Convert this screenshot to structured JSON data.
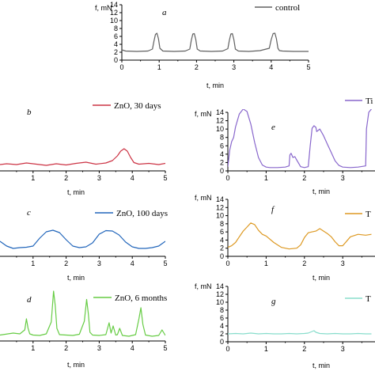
{
  "chart_data": [
    {
      "panel_letter": "a",
      "type": "line",
      "xlabel": "t, min",
      "ylabel": "f, mN",
      "xticks": [
        "0",
        "1",
        "2",
        "3",
        "4",
        "5"
      ],
      "yticks": [
        "0",
        "2",
        "4",
        "6",
        "8",
        "10",
        "12",
        "14"
      ],
      "xlim": [
        0,
        5
      ],
      "ylim": [
        0,
        14
      ],
      "series": [
        {
          "name": "control",
          "color": "#606060",
          "x": [
            0.0,
            0.1,
            0.4,
            0.7,
            0.82,
            0.86,
            0.9,
            0.94,
            0.98,
            1.02,
            1.1,
            1.4,
            1.7,
            1.82,
            1.86,
            1.9,
            1.94,
            1.98,
            2.02,
            2.1,
            2.4,
            2.7,
            2.84,
            2.88,
            2.92,
            2.96,
            3.0,
            3.04,
            3.12,
            3.4,
            3.7,
            3.95,
            4.0,
            4.05,
            4.1,
            4.14,
            4.18,
            4.22,
            4.3,
            4.6,
            5.0
          ],
          "y": [
            2.6,
            2.3,
            2.2,
            2.3,
            2.8,
            4.8,
            6.5,
            6.8,
            5.4,
            3.0,
            2.3,
            2.2,
            2.3,
            2.8,
            5.0,
            6.6,
            6.7,
            5.2,
            2.8,
            2.3,
            2.2,
            2.3,
            2.9,
            5.0,
            6.6,
            6.7,
            5.2,
            2.8,
            2.3,
            2.2,
            2.4,
            3.0,
            5.2,
            6.7,
            6.8,
            5.4,
            3.0,
            2.4,
            2.3,
            2.2,
            2.2
          ]
        }
      ]
    },
    {
      "panel_letter": "b",
      "type": "line",
      "xlabel": "t, min",
      "xticks": [
        "1",
        "2",
        "3",
        "4",
        "5"
      ],
      "xlim": [
        0,
        5
      ],
      "ylim": [
        0,
        14
      ],
      "series": [
        {
          "name": "ZnO, 30 days",
          "color": "#cc3344",
          "x": [
            0.0,
            0.2,
            0.5,
            0.8,
            1.1,
            1.4,
            1.7,
            2.0,
            2.3,
            2.6,
            2.9,
            3.2,
            3.4,
            3.55,
            3.65,
            3.75,
            3.85,
            3.95,
            4.05,
            4.2,
            4.5,
            4.8,
            5.0
          ],
          "y": [
            1.6,
            1.8,
            1.6,
            2.0,
            1.7,
            1.4,
            1.8,
            1.5,
            1.9,
            2.2,
            1.7,
            2.0,
            2.6,
            3.8,
            5.0,
            5.6,
            5.0,
            3.4,
            2.1,
            1.7,
            1.9,
            1.6,
            1.9
          ]
        }
      ]
    },
    {
      "panel_letter": "c",
      "type": "line",
      "xlabel": "t, min",
      "xticks": [
        "1",
        "2",
        "3",
        "4",
        "5"
      ],
      "xlim": [
        0,
        5
      ],
      "ylim": [
        0,
        14
      ],
      "series": [
        {
          "name": "ZnO, 100 days",
          "color": "#2266bb",
          "x": [
            0.0,
            0.2,
            0.4,
            0.6,
            0.8,
            1.0,
            1.2,
            1.4,
            1.6,
            1.8,
            2.0,
            2.2,
            2.4,
            2.6,
            2.8,
            3.0,
            3.2,
            3.4,
            3.6,
            3.8,
            4.0,
            4.2,
            4.4,
            4.6,
            4.8,
            5.0
          ],
          "y": [
            3.8,
            2.6,
            2.0,
            2.2,
            2.3,
            2.6,
            4.6,
            6.2,
            6.6,
            6.0,
            4.2,
            2.6,
            2.2,
            2.4,
            3.4,
            5.6,
            6.5,
            6.4,
            5.4,
            3.6,
            2.4,
            2.0,
            2.0,
            2.2,
            2.6,
            3.8
          ]
        }
      ]
    },
    {
      "panel_letter": "d",
      "type": "line",
      "xlabel": "t, min",
      "xticks": [
        "1",
        "2",
        "3",
        "4",
        "5"
      ],
      "xlim": [
        0,
        5
      ],
      "ylim": [
        0,
        14
      ],
      "series": [
        {
          "name": "ZnO, 6 months",
          "color": "#66cc44",
          "x": [
            0.0,
            0.4,
            0.6,
            0.75,
            0.8,
            0.85,
            0.9,
            1.0,
            1.2,
            1.4,
            1.55,
            1.62,
            1.67,
            1.72,
            1.8,
            2.0,
            2.2,
            2.4,
            2.55,
            2.62,
            2.67,
            2.72,
            2.8,
            3.0,
            3.2,
            3.3,
            3.36,
            3.42,
            3.5,
            3.55,
            3.62,
            3.7,
            3.9,
            4.1,
            4.2,
            4.26,
            4.32,
            4.4,
            4.6,
            4.8,
            4.9,
            5.0
          ],
          "y": [
            1.5,
            2.0,
            1.8,
            2.8,
            5.6,
            3.2,
            1.8,
            1.5,
            1.4,
            1.8,
            4.8,
            12.6,
            9.0,
            3.2,
            1.6,
            1.5,
            1.4,
            1.7,
            5.0,
            10.5,
            7.0,
            2.2,
            1.5,
            1.4,
            1.6,
            4.6,
            2.0,
            3.8,
            1.5,
            1.6,
            3.2,
            1.4,
            1.2,
            1.6,
            5.6,
            8.4,
            4.2,
            1.5,
            1.2,
            1.4,
            2.8,
            1.4
          ]
        }
      ]
    },
    {
      "panel_letter": "e",
      "type": "line",
      "xlabel": "t, min",
      "ylabel": "f, mN",
      "xticks": [
        "0",
        "1",
        "2",
        "3"
      ],
      "yticks": [
        "0",
        "2",
        "4",
        "6",
        "8",
        "10",
        "12",
        "14"
      ],
      "xlim": [
        0,
        5
      ],
      "ylim": [
        0,
        14
      ],
      "series": [
        {
          "name": "Ti",
          "color": "#8866cc",
          "x": [
            0.0,
            0.05,
            0.1,
            0.15,
            0.2,
            0.3,
            0.4,
            0.5,
            0.6,
            0.7,
            0.8,
            0.9,
            1.0,
            1.1,
            1.3,
            1.5,
            1.6,
            1.62,
            1.65,
            1.7,
            1.75,
            1.8,
            1.9,
            2.0,
            2.1,
            2.15,
            2.2,
            2.25,
            2.3,
            2.32,
            2.4,
            2.5,
            2.6,
            2.7,
            2.8,
            2.9,
            3.0,
            3.2,
            3.4,
            3.6,
            3.62,
            3.68,
            3.75
          ],
          "y": [
            1.0,
            5.0,
            7.0,
            8.0,
            10.5,
            13.6,
            14.8,
            14.2,
            11.2,
            6.8,
            3.2,
            1.4,
            0.9,
            0.8,
            0.8,
            0.9,
            1.2,
            3.8,
            4.2,
            3.2,
            3.4,
            2.6,
            1.0,
            0.8,
            1.0,
            6.0,
            10.2,
            10.8,
            10.4,
            9.4,
            10.0,
            8.4,
            6.4,
            4.4,
            2.4,
            1.3,
            0.9,
            0.8,
            0.9,
            1.2,
            10.0,
            14.0,
            14.8
          ]
        }
      ]
    },
    {
      "panel_letter": "f",
      "type": "line",
      "xlabel": "t, min",
      "ylabel": "f, mN",
      "xticks": [
        "0",
        "1",
        "2",
        "3"
      ],
      "yticks": [
        "0",
        "2",
        "4",
        "6",
        "8",
        "10",
        "12",
        "14"
      ],
      "xlim": [
        0,
        5
      ],
      "ylim": [
        0,
        14
      ],
      "series": [
        {
          "name": "T",
          "color": "#dd9922",
          "x": [
            0.0,
            0.1,
            0.2,
            0.3,
            0.4,
            0.5,
            0.6,
            0.7,
            0.8,
            0.9,
            1.0,
            1.2,
            1.4,
            1.6,
            1.8,
            1.9,
            2.0,
            2.1,
            2.2,
            2.3,
            2.4,
            2.5,
            2.6,
            2.7,
            2.8,
            2.9,
            3.0,
            3.2,
            3.4,
            3.6,
            3.75
          ],
          "y": [
            2.2,
            2.6,
            3.4,
            4.8,
            6.2,
            7.2,
            8.2,
            7.8,
            6.4,
            5.4,
            5.0,
            3.4,
            2.2,
            1.8,
            2.0,
            2.8,
            4.6,
            5.8,
            6.0,
            6.2,
            6.8,
            6.2,
            5.6,
            4.8,
            3.6,
            2.6,
            2.6,
            4.8,
            5.4,
            5.2,
            5.4
          ]
        }
      ]
    },
    {
      "panel_letter": "g",
      "type": "line",
      "xlabel": "t, min",
      "ylabel": "f, mN",
      "xticks": [
        "0",
        "1",
        "2",
        "3"
      ],
      "yticks": [
        "0",
        "2",
        "4",
        "6",
        "8",
        "10",
        "12",
        "14"
      ],
      "xlim": [
        0,
        5
      ],
      "ylim": [
        0,
        14
      ],
      "series": [
        {
          "name": "T",
          "color": "#88ddcc",
          "x": [
            0.0,
            0.2,
            0.4,
            0.6,
            0.8,
            1.0,
            1.2,
            1.4,
            1.6,
            1.8,
            2.0,
            2.1,
            2.2,
            2.25,
            2.3,
            2.4,
            2.6,
            2.8,
            3.0,
            3.2,
            3.4,
            3.6,
            3.75
          ],
          "y": [
            2.0,
            2.1,
            2.0,
            2.2,
            2.0,
            2.1,
            2.0,
            2.0,
            2.1,
            2.0,
            2.1,
            2.2,
            2.6,
            2.8,
            2.4,
            2.1,
            2.0,
            2.1,
            2.0,
            2.0,
            2.1,
            2.0,
            2.0
          ]
        }
      ]
    }
  ]
}
